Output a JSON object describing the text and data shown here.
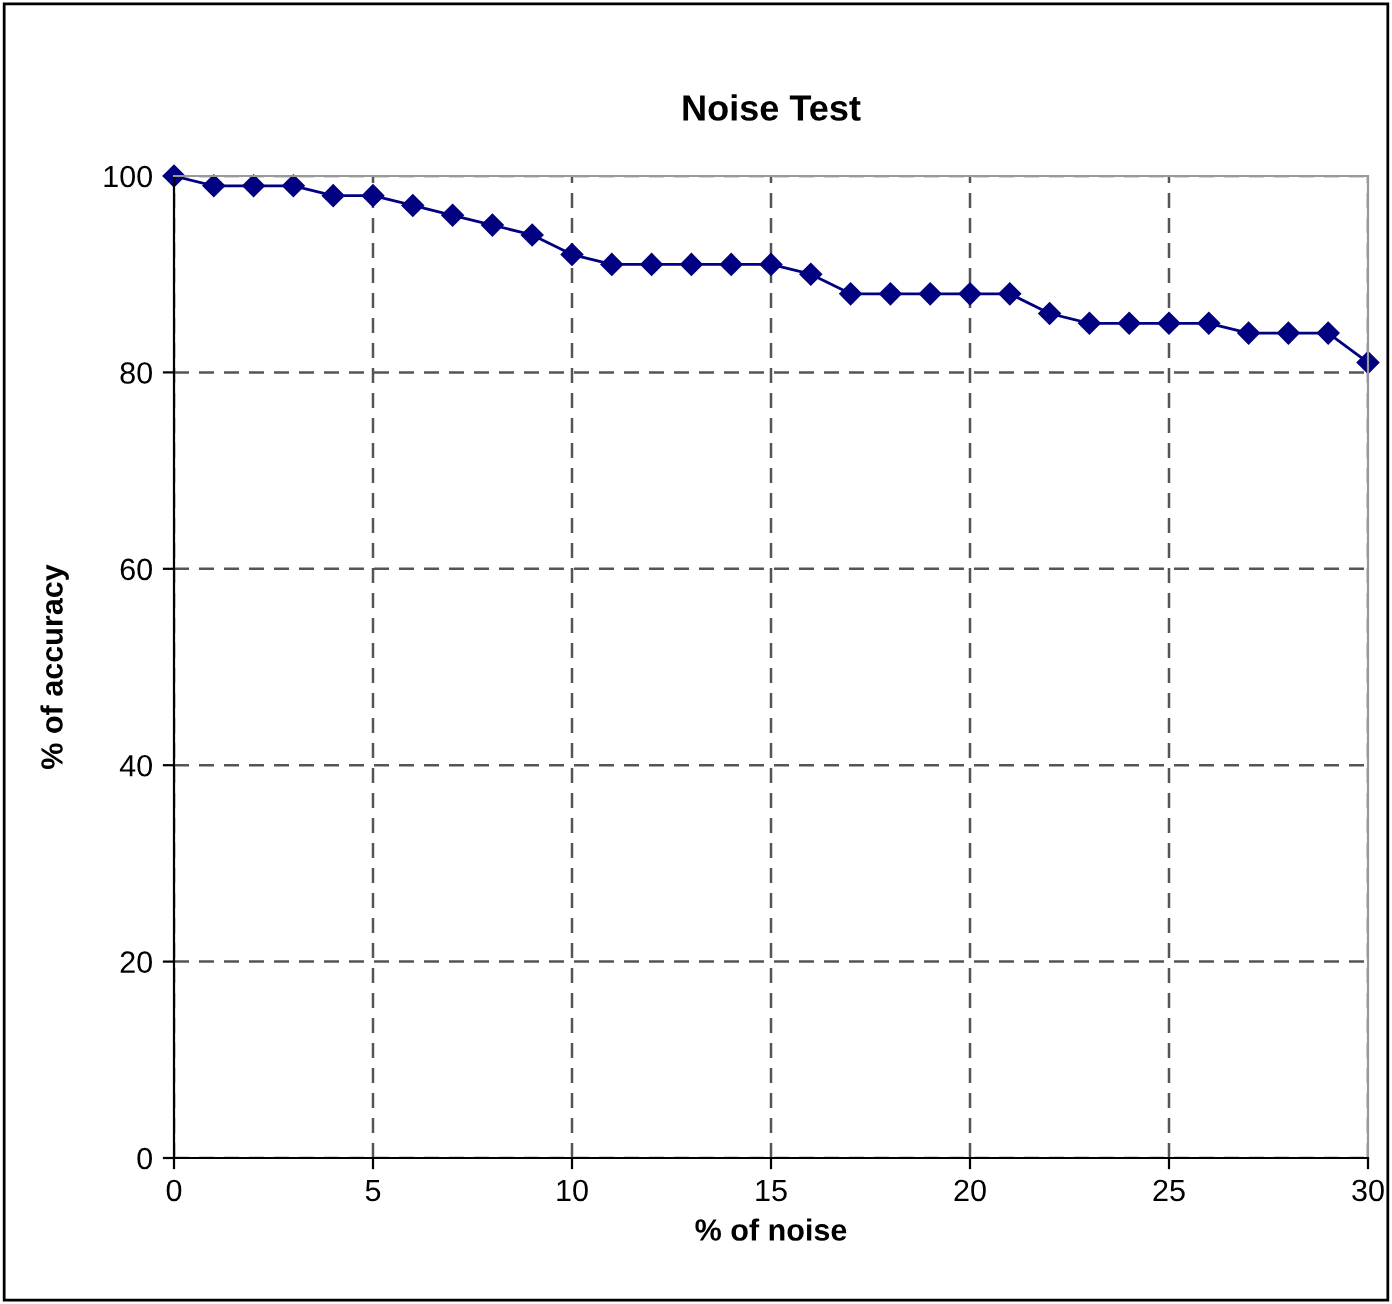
{
  "chart_data": {
    "type": "line",
    "title": "Noise Test",
    "xlabel": "% of noise",
    "ylabel": "% of accuracy",
    "x": [
      0,
      1,
      2,
      3,
      4,
      5,
      6,
      7,
      8,
      9,
      10,
      11,
      12,
      13,
      14,
      15,
      16,
      17,
      18,
      19,
      20,
      21,
      22,
      23,
      24,
      25,
      26,
      27,
      28,
      29,
      30
    ],
    "series": [
      {
        "color": "#000080",
        "values": [
          100,
          99,
          99,
          99,
          98,
          98,
          97,
          96,
          95,
          94,
          92,
          91,
          91,
          91,
          91,
          91,
          90,
          88,
          88,
          88,
          88,
          88,
          86,
          85,
          85,
          85,
          85,
          84,
          84,
          84,
          81
        ]
      }
    ],
    "xlim": [
      0,
      30
    ],
    "xticks": [
      0,
      5,
      10,
      15,
      20,
      25,
      30
    ],
    "ylim": [
      0,
      100
    ],
    "yticks": [
      0,
      20,
      40,
      60,
      80,
      100
    ],
    "grid": true,
    "marker": "diamond",
    "line_style": "solid",
    "legend": false
  }
}
